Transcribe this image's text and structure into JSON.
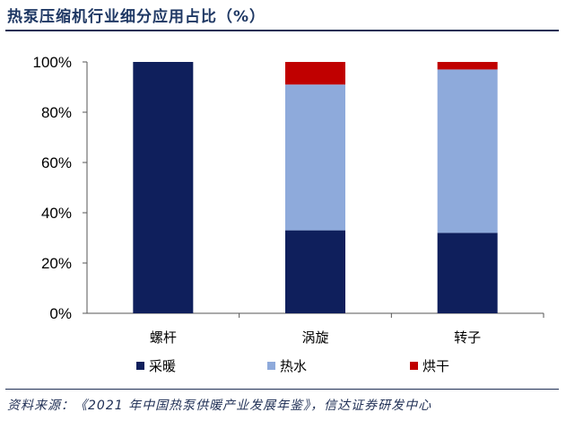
{
  "title": "热泵压缩机行业细分应用占比（%）",
  "source": "资料来源：《2021 年中国热泵供暖产业发展年鉴》，信达证券研发中心",
  "chart_data": {
    "type": "bar",
    "stacked": true,
    "categories": [
      "螺杆",
      "涡旋",
      "转子"
    ],
    "series": [
      {
        "name": "采暖",
        "color": "#0f1f5c",
        "values": [
          100,
          33,
          32
        ]
      },
      {
        "name": "热水",
        "color": "#8eaadb",
        "values": [
          0,
          58,
          65
        ]
      },
      {
        "name": "烘干",
        "color": "#c00000",
        "values": [
          0,
          9,
          3
        ]
      }
    ],
    "yticks": [
      "0%",
      "20%",
      "40%",
      "60%",
      "80%",
      "100%"
    ],
    "ylim": [
      0,
      100
    ],
    "legend_position": "bottom",
    "grid": false
  }
}
